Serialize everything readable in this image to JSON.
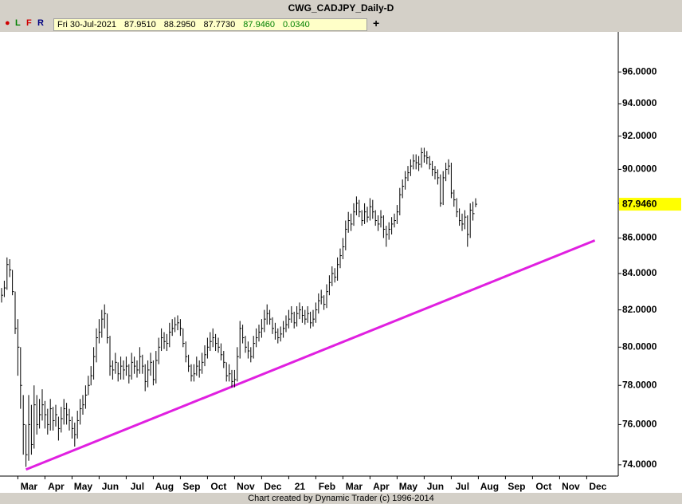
{
  "title": "CWG_CADJPY_Daily-D",
  "toolbar": {
    "l": "L",
    "f": "F",
    "r": "R"
  },
  "info": {
    "date": "Fri 30-Jul-2021",
    "open": "87.9510",
    "high": "88.2950",
    "low": "87.7730",
    "close": "87.9460",
    "change": "0.0340"
  },
  "footer": "Chart created by Dynamic Trader  (c) 1996-2014",
  "chart_data": {
    "type": "ohlc",
    "log": true,
    "grid": false,
    "color": "#000000",
    "ylim": [
      73.45,
      97.7
    ],
    "yticks": [
      {
        "value": 74,
        "label": "74.0000"
      },
      {
        "value": 76,
        "label": "76.0000"
      },
      {
        "value": 78,
        "label": "78.0000"
      },
      {
        "value": 80,
        "label": "80.0000"
      },
      {
        "value": 82,
        "label": "82.0000"
      },
      {
        "value": 84,
        "label": "84.0000"
      },
      {
        "value": 86,
        "label": "86.0000"
      },
      {
        "value": 88,
        "label": "88.0000"
      },
      {
        "value": 90,
        "label": "90.0000"
      },
      {
        "value": 92,
        "label": "92.0000"
      },
      {
        "value": 94,
        "label": "94.0000"
      },
      {
        "value": 96,
        "label": "96.0000"
      }
    ],
    "last_price": {
      "value": 87.946,
      "label": "87.9460",
      "color": "#ffff00"
    },
    "categories": [
      null,
      null,
      null,
      null,
      null,
      null,
      "Mar",
      null,
      null,
      null,
      null,
      null,
      null,
      null,
      null,
      null,
      "Apr",
      null,
      null,
      null,
      null,
      null,
      null,
      null,
      null,
      null,
      "May",
      null,
      null,
      null,
      null,
      null,
      null,
      null,
      null,
      null,
      "Jun",
      null,
      null,
      null,
      null,
      null,
      null,
      null,
      null,
      null,
      "Jul",
      null,
      null,
      null,
      null,
      null,
      null,
      null,
      null,
      null,
      "Aug",
      null,
      null,
      null,
      null,
      null,
      null,
      null,
      null,
      null,
      "Sep",
      null,
      null,
      null,
      null,
      null,
      null,
      null,
      null,
      null,
      "Oct",
      null,
      null,
      null,
      null,
      null,
      null,
      null,
      null,
      null,
      "Nov",
      null,
      null,
      null,
      null,
      null,
      null,
      null,
      null,
      null,
      "Dec",
      null,
      null,
      null,
      null,
      null,
      null,
      null,
      null,
      null,
      "21",
      null,
      null,
      null,
      null,
      null,
      null,
      null,
      null,
      null,
      "Feb",
      null,
      null,
      null,
      null,
      null,
      null,
      null,
      null,
      null,
      "Mar",
      null,
      null,
      null,
      null,
      null,
      null,
      null,
      null,
      null,
      "Apr",
      null,
      null,
      null,
      null,
      null,
      null,
      null,
      null,
      null,
      "May",
      null,
      null,
      null,
      null,
      null,
      null,
      null,
      null,
      null,
      "Jun",
      null,
      null,
      null,
      null,
      null,
      null,
      null,
      null,
      null,
      "Jul",
      null,
      null,
      null,
      null,
      null,
      null,
      null,
      null,
      null,
      "Aug",
      null,
      null,
      null,
      null,
      null,
      null,
      null,
      null,
      null,
      "Sep",
      null,
      null,
      null,
      null,
      null,
      null,
      null,
      null,
      null,
      "Oct",
      null,
      null,
      null,
      null,
      null,
      null,
      null,
      null,
      null,
      "Nov",
      null,
      null,
      null,
      null,
      null,
      null,
      null,
      null,
      null,
      "Dec",
      null,
      null,
      null,
      null,
      null,
      null,
      null,
      null,
      null
    ],
    "high": [
      83.2,
      83.6,
      84.9,
      84.8,
      84.2,
      83,
      81.5,
      80,
      77.5,
      76,
      77.5,
      77,
      78,
      77.5,
      77.3,
      77.8,
      77.2,
      76.8,
      77.3,
      76.9,
      77,
      76.4,
      76.9,
      77.3,
      77.1,
      76.8,
      76.4,
      76.1,
      76.7,
      77.3,
      77.5,
      78,
      78.5,
      79,
      80,
      81,
      81.5,
      82,
      82.3,
      81.8,
      80.6,
      79.3,
      79.7,
      79.2,
      79.5,
      79.3,
      79.5,
      79.1,
      79.7,
      79.5,
      79.3,
      80,
      79.6,
      79.1,
      79.3,
      79.7,
      79.3,
      79.8,
      80.5,
      81,
      80.8,
      80.7,
      81.3,
      81.5,
      81.6,
      81.7,
      81.5,
      81,
      80.3,
      79.6,
      79.1,
      79.1,
      79.5,
      79.3,
      79.7,
      80.1,
      80.5,
      80.8,
      81,
      80.7,
      80.5,
      80.2,
      79.8,
      79.2,
      79.1,
      78.8,
      78.8,
      80,
      81.4,
      81.2,
      80.6,
      80.3,
      80,
      80.6,
      81,
      81.2,
      81.5,
      82,
      82.3,
      82,
      81.6,
      81.3,
      81,
      81.1,
      81.4,
      81.7,
      82,
      82.2,
      81.9,
      82.2,
      82.4,
      82.2,
      82,
      82.2,
      81.9,
      82,
      82.4,
      82.9,
      83.1,
      82.8,
      83.4,
      83.9,
      84.4,
      84.3,
      84.9,
      85.4,
      86,
      87,
      87.5,
      87.4,
      88,
      88.4,
      88.2,
      87.6,
      88,
      87.8,
      88.3,
      88.2,
      87.6,
      87.3,
      87.6,
      87.3,
      86.7,
      86.9,
      87.2,
      87.4,
      87.9,
      88.9,
      89.4,
      89.9,
      90.2,
      90.6,
      90.9,
      90.9,
      90.8,
      91.3,
      91.3,
      91.1,
      90.8,
      90.5,
      90.2,
      90,
      89.7,
      89.9,
      90.4,
      90.6,
      90.4,
      88.8,
      88.3,
      87.7,
      87.4,
      87.6,
      87.3,
      88,
      88.1,
      88.295,
      null,
      null,
      null,
      null,
      null,
      null,
      null,
      null,
      null,
      null,
      null,
      null,
      null,
      null,
      null,
      null,
      null,
      null,
      null,
      null,
      null,
      null,
      null,
      null,
      null,
      null,
      null,
      null,
      null,
      null,
      null,
      null,
      null,
      null,
      null,
      null,
      null,
      null,
      null,
      null,
      null,
      null,
      null,
      null,
      null,
      null,
      null,
      null,
      null,
      null
    ],
    "low": [
      82.4,
      82.7,
      83.1,
      83.8,
      82.8,
      80.7,
      78.5,
      76.8,
      74.5,
      73.9,
      74.2,
      74.5,
      74.8,
      75.5,
      75.8,
      76.2,
      75.8,
      75.5,
      75.7,
      75.7,
      75.9,
      75.2,
      75.6,
      76,
      76,
      75.7,
      75.3,
      74.9,
      75.3,
      76,
      76.5,
      76.8,
      77.5,
      78,
      78.3,
      79.2,
      80.2,
      80.5,
      81,
      80.2,
      78.5,
      78.3,
      78.6,
      78.2,
      78.3,
      78.3,
      78.5,
      78.1,
      78.3,
      78.6,
      78.4,
      78.6,
      78.6,
      77.7,
      77.9,
      78.5,
      78,
      78.1,
      79.1,
      79.8,
      79.9,
      79.8,
      80,
      80.6,
      80.8,
      80.9,
      80.6,
      80,
      79.2,
      78.7,
      78.2,
      78.2,
      78.5,
      78.4,
      78.6,
      79,
      79.4,
      79.8,
      80,
      79.8,
      79.7,
      79.3,
      78.9,
      78.2,
      78.2,
      77.9,
      77.9,
      78.2,
      79.4,
      80.2,
      79.7,
      79.4,
      79.2,
      79.4,
      80,
      80.3,
      80.5,
      80.8,
      81.2,
      81.2,
      80.7,
      80.4,
      80.2,
      80.3,
      80.5,
      80.8,
      81,
      81.3,
      81,
      81.1,
      81.5,
      81.3,
      81.2,
      81.3,
      81,
      81.1,
      81.3,
      81.8,
      82.3,
      82,
      82.1,
      82.8,
      83.3,
      83.5,
      83.6,
      84.3,
      84.8,
      85.3,
      86.3,
      86.4,
      86.7,
      87.3,
      87.2,
      86.7,
      86.8,
      86.9,
      87,
      87.1,
      86.7,
      86.4,
      86.6,
      86,
      85.5,
      85.9,
      86.2,
      86.6,
      86.8,
      87.3,
      88.3,
      88.8,
      89.3,
      89.6,
      90,
      90,
      89.9,
      90.1,
      90.4,
      90.3,
      90,
      89.6,
      89.4,
      89.1,
      87.8,
      87.9,
      89.3,
      89.7,
      88.3,
      87.8,
      87.2,
      86.7,
      86.4,
      86.5,
      85.5,
      86,
      87,
      87.773,
      null,
      null,
      null,
      null,
      null,
      null,
      null,
      null,
      null,
      null,
      null,
      null,
      null,
      null,
      null,
      null,
      null,
      null,
      null,
      null,
      null,
      null,
      null,
      null,
      null,
      null,
      null,
      null,
      null,
      null,
      null,
      null,
      null,
      null,
      null,
      null,
      null,
      null,
      null,
      null,
      null,
      null,
      null,
      null,
      null,
      null,
      null,
      null,
      null,
      null
    ],
    "close": [
      82.8,
      83.2,
      84.5,
      84.2,
      83,
      81,
      80,
      78,
      76,
      74.5,
      76,
      75,
      77,
      76,
      76.5,
      77,
      76.5,
      76,
      76.8,
      76.2,
      76.5,
      75.8,
      76.3,
      76.8,
      76.5,
      76.2,
      75.8,
      75.5,
      76.2,
      76.8,
      77,
      77.5,
      78,
      78.5,
      79.5,
      80.5,
      80.8,
      81.5,
      81.8,
      80.5,
      79,
      78.8,
      79.2,
      78.6,
      79,
      78.8,
      79,
      78.5,
      79.2,
      79,
      78.8,
      79.5,
      79,
      78.2,
      78.8,
      79.2,
      78.3,
      79.3,
      80,
      80.5,
      80.3,
      80.2,
      80.8,
      81,
      81.2,
      81.3,
      81,
      80.2,
      79.5,
      79,
      78.5,
      78.6,
      79,
      78.8,
      79.2,
      79.6,
      80,
      80.3,
      80.5,
      80.2,
      80,
      79.6,
      79.2,
      78.5,
      78.6,
      78.2,
      78.3,
      79.5,
      81,
      80.5,
      80,
      79.8,
      79.5,
      80.2,
      80.5,
      80.8,
      81,
      81.5,
      81.8,
      81.5,
      81,
      80.8,
      80.5,
      80.7,
      81,
      81.2,
      81.5,
      81.8,
      81.3,
      81.8,
      82,
      81.7,
      81.5,
      81.8,
      81.3,
      81.5,
      82,
      82.5,
      82.7,
      82.3,
      83,
      83.5,
      84,
      83.8,
      84.5,
      85,
      85.5,
      86.5,
      87,
      86.8,
      87.5,
      88,
      87.5,
      87,
      87.5,
      87.2,
      87.8,
      87.5,
      87,
      86.8,
      87.2,
      86.5,
      86.2,
      86.5,
      86.8,
      87,
      87.5,
      88.5,
      89,
      89.5,
      89.8,
      90.2,
      90.5,
      90.4,
      90.3,
      91,
      90.8,
      90.7,
      90.3,
      90,
      89.8,
      89.5,
      88,
      89.5,
      90,
      90.2,
      88.6,
      88.2,
      87.5,
      87,
      86.8,
      87.2,
      86.2,
      87.6,
      87.4,
      87.946,
      null,
      null,
      null,
      null,
      null,
      null,
      null,
      null,
      null,
      null,
      null,
      null,
      null,
      null,
      null,
      null,
      null,
      null,
      null,
      null,
      null,
      null,
      null,
      null,
      null,
      null,
      null,
      null,
      null,
      null,
      null,
      null,
      null,
      null,
      null,
      null,
      null,
      null,
      null,
      null,
      null,
      null,
      null,
      null,
      null,
      null,
      null,
      null,
      null,
      null
    ],
    "trendline": {
      "color": "#e020e0",
      "values": [
        null,
        null,
        null,
        null,
        null,
        null,
        null,
        null,
        null,
        73.77,
        null,
        null,
        null,
        null,
        null,
        null,
        null,
        null,
        null,
        null,
        null,
        null,
        null,
        null,
        null,
        null,
        null,
        null,
        null,
        null,
        null,
        null,
        null,
        null,
        null,
        null,
        null,
        null,
        null,
        null,
        null,
        null,
        null,
        null,
        null,
        null,
        null,
        null,
        null,
        null,
        null,
        null,
        null,
        null,
        null,
        null,
        null,
        null,
        null,
        null,
        null,
        null,
        null,
        null,
        null,
        null,
        null,
        null,
        null,
        null,
        null,
        null,
        null,
        null,
        null,
        null,
        null,
        null,
        null,
        null,
        null,
        null,
        null,
        null,
        null,
        null,
        null,
        null,
        null,
        null,
        null,
        null,
        null,
        null,
        null,
        null,
        null,
        null,
        null,
        null,
        null,
        null,
        null,
        null,
        null,
        null,
        null,
        null,
        null,
        null,
        null,
        null,
        null,
        null,
        null,
        null,
        null,
        null,
        null,
        null,
        null,
        null,
        null,
        null,
        null,
        null,
        null,
        null,
        null,
        null,
        null,
        null,
        null,
        null,
        null,
        null,
        null,
        null,
        null,
        null,
        null,
        null,
        null,
        null,
        null,
        null,
        null,
        null,
        null,
        null,
        null,
        null,
        null,
        null,
        null,
        null,
        null,
        null,
        null,
        null,
        null,
        null,
        null,
        null,
        null,
        null,
        null,
        null,
        null,
        null,
        null,
        null,
        null,
        null,
        null,
        null,
        null,
        null,
        null,
        null,
        null,
        null,
        null,
        null,
        null,
        null,
        null,
        null,
        null,
        null,
        null,
        null,
        null,
        null,
        null,
        null,
        null,
        null,
        null,
        null,
        null,
        null,
        null,
        null,
        null,
        null,
        null,
        null,
        null,
        null,
        null,
        null,
        null,
        null,
        null,
        null,
        null,
        null,
        null,
        85.86,
        null,
        null,
        null,
        null,
        null,
        null
      ]
    }
  }
}
